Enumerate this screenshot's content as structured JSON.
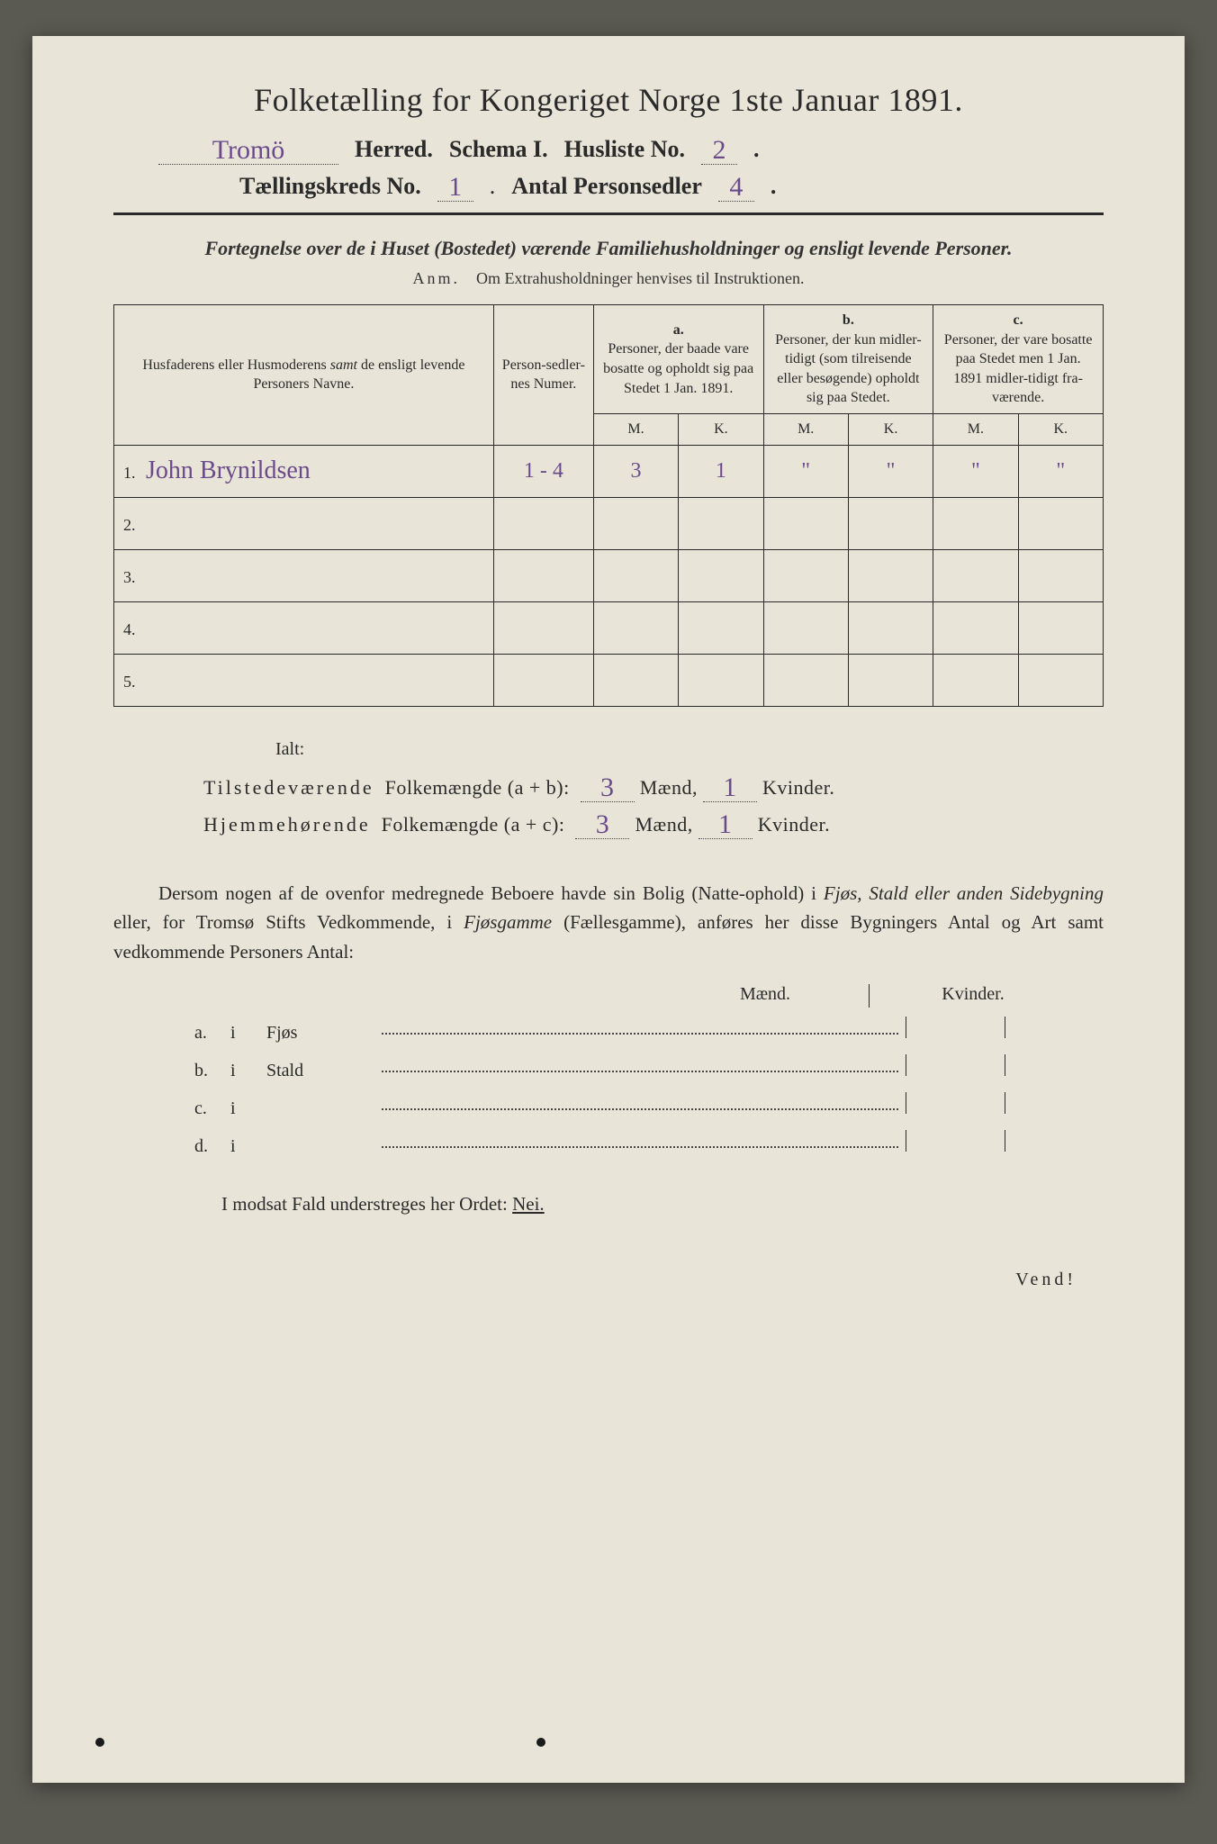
{
  "title": "Folketælling for Kongeriget Norge 1ste Januar 1891.",
  "header": {
    "herred_value": "Tromö",
    "herred_label": "Herred.",
    "schema_label": "Schema I.",
    "husliste_label": "Husliste No.",
    "husliste_value": "2",
    "kreds_label": "Tællingskreds No.",
    "kreds_value": "1",
    "antal_label": "Antal Personsedler",
    "antal_value": "4"
  },
  "subtitle": "Fortegnelse over de i Huset (Bostedet) værende Familiehusholdninger og ensligt levende Personer.",
  "anm_label": "Anm.",
  "anm_text": "Om Extrahusholdninger henvises til Instruktionen.",
  "table": {
    "col_name": "Husfaderens eller Husmoderens samt de ensligt levende Personers Navne.",
    "col_num": "Person-sedler-nes Numer.",
    "col_a_letter": "a.",
    "col_a": "Personer, der baade vare bosatte og opholdt sig paa Stedet 1 Jan. 1891.",
    "col_b_letter": "b.",
    "col_b": "Personer, der kun midler-tidigt (som tilreisende eller besøgende) opholdt sig paa Stedet.",
    "col_c_letter": "c.",
    "col_c": "Personer, der vare bosatte paa Stedet men 1 Jan. 1891 midler-tidigt fra-værende.",
    "m": "M.",
    "k": "K.",
    "rows": [
      {
        "n": "1.",
        "name": "John Brynildsen",
        "num": "1 - 4",
        "am": "3",
        "ak": "1",
        "bm": "\"",
        "bk": "\"",
        "cm": "\"",
        "ck": "\""
      },
      {
        "n": "2.",
        "name": "",
        "num": "",
        "am": "",
        "ak": "",
        "bm": "",
        "bk": "",
        "cm": "",
        "ck": ""
      },
      {
        "n": "3.",
        "name": "",
        "num": "",
        "am": "",
        "ak": "",
        "bm": "",
        "bk": "",
        "cm": "",
        "ck": ""
      },
      {
        "n": "4.",
        "name": "",
        "num": "",
        "am": "",
        "ak": "",
        "bm": "",
        "bk": "",
        "cm": "",
        "ck": ""
      },
      {
        "n": "5.",
        "name": "",
        "num": "",
        "am": "",
        "ak": "",
        "bm": "",
        "bk": "",
        "cm": "",
        "ck": ""
      }
    ]
  },
  "ialt": "Ialt:",
  "sums": {
    "line1_label": "Tilstedeværende Folkemængde (a + b):",
    "line1_m": "3",
    "line1_k": "1",
    "line2_label": "Hjemmehørende Folkemængde (a + c):",
    "line2_m": "3",
    "line2_k": "1",
    "maend": "Mænd,",
    "kvinder": "Kvinder."
  },
  "paragraph": {
    "p1": "Dersom nogen af de ovenfor medregnede Beboere havde sin Bolig (Natte-ophold) i ",
    "p2": "Fjøs, Stald eller anden Sidebygning",
    "p3": " eller, for Tromsø Stifts Vedkommende, i ",
    "p4": "Fjøsgamme",
    "p5": " (Fællesgamme), anføres her disse Bygningers Antal og Art samt vedkommende Personers Antal:"
  },
  "mk": {
    "m": "Mænd.",
    "k": "Kvinder."
  },
  "bottom": [
    {
      "a": "a.",
      "i": "i",
      "name": "Fjøs"
    },
    {
      "a": "b.",
      "i": "i",
      "name": "Stald"
    },
    {
      "a": "c.",
      "i": "i",
      "name": ""
    },
    {
      "a": "d.",
      "i": "i",
      "name": ""
    }
  ],
  "final": {
    "text1": "I modsat Fald understreges her Ordet: ",
    "nei": "Nei."
  },
  "vend": "Vend!",
  "colors": {
    "page_bg": "#e8e5d8",
    "body_bg": "#5a5a52",
    "text": "#2a2a2a",
    "handwriting": "#6b4a8a",
    "border": "#2a2a2a"
  }
}
